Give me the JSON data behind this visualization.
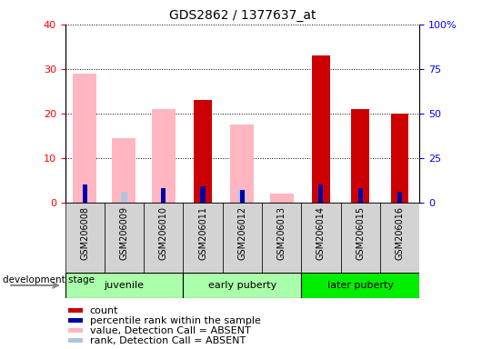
{
  "title": "GDS2862 / 1377637_at",
  "samples": [
    "GSM206008",
    "GSM206009",
    "GSM206010",
    "GSM206011",
    "GSM206012",
    "GSM206013",
    "GSM206014",
    "GSM206015",
    "GSM206016"
  ],
  "count_values": [
    0,
    0,
    0,
    23,
    0,
    0,
    33,
    21,
    20
  ],
  "percentile_rank_values": [
    10,
    0,
    8,
    9,
    7,
    0,
    10,
    8,
    6
  ],
  "absent_value_values": [
    29,
    14.5,
    21,
    0,
    17.5,
    2,
    0,
    0,
    0
  ],
  "absent_rank_values": [
    0,
    6,
    0,
    0,
    7,
    0,
    0,
    0,
    0
  ],
  "count_color": "#CC0000",
  "percentile_rank_color": "#0000AA",
  "absent_value_color": "#FFB6C1",
  "absent_rank_color": "#B0C4DE",
  "ylim_left": [
    0,
    40
  ],
  "ylim_right": [
    0,
    100
  ],
  "yticks_left": [
    0,
    10,
    20,
    30,
    40
  ],
  "yticks_right": [
    0,
    25,
    50,
    75,
    100
  ],
  "yticklabels_right": [
    "0",
    "25",
    "50",
    "75",
    "100%"
  ],
  "background_color": "#FFFFFF",
  "plot_bg_color": "#FFFFFF",
  "xticklabel_bg_color": "#D3D3D3",
  "groups": [
    {
      "name": "juvenile",
      "start": 0,
      "end": 3,
      "color": "#AAFFAA"
    },
    {
      "name": "early puberty",
      "start": 3,
      "end": 6,
      "color": "#AAFFAA"
    },
    {
      "name": "later puberty",
      "start": 6,
      "end": 9,
      "color": "#00EE00"
    }
  ],
  "legend_items": [
    {
      "label": "count",
      "color": "#CC0000"
    },
    {
      "label": "percentile rank within the sample",
      "color": "#0000AA"
    },
    {
      "label": "value, Detection Call = ABSENT",
      "color": "#FFB6C1"
    },
    {
      "label": "rank, Detection Call = ABSENT",
      "color": "#B0C4DE"
    }
  ],
  "dev_stage_label": "development stage",
  "absent_bar_width": 0.3,
  "count_bar_width": 0.25,
  "rank_bar_width": 0.12
}
